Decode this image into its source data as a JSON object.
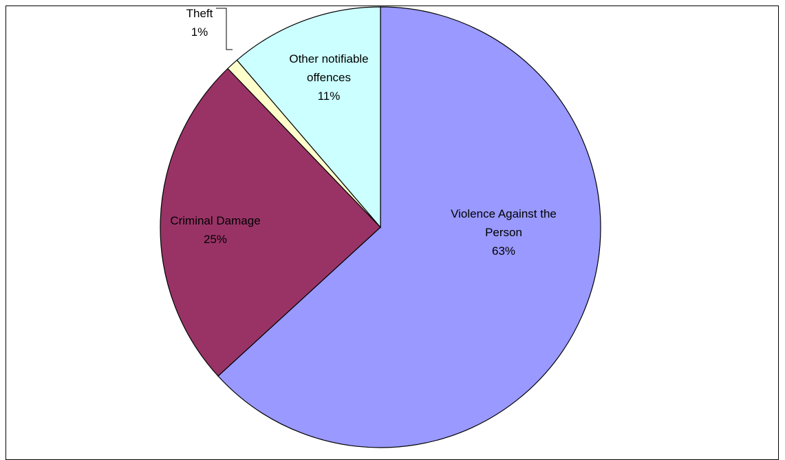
{
  "chart_data": {
    "type": "pie",
    "title": "",
    "start_angle_deg": 0,
    "direction": "clockwise",
    "slices": [
      {
        "name": "Violence Against the Person",
        "label_lines": [
          "Violence Against the",
          "Person"
        ],
        "pct_label": "63%",
        "value": 63.2,
        "color": "#9999ff"
      },
      {
        "name": "Criminal Damage",
        "label_lines": [
          "Criminal Damage"
        ],
        "pct_label": "25%",
        "value": 24.6,
        "color": "#993366"
      },
      {
        "name": "Theft",
        "label_lines": [
          "Theft"
        ],
        "pct_label": "1%",
        "value": 0.9,
        "color": "#ffffcc"
      },
      {
        "name": "Other notifiable offences",
        "label_lines": [
          "Other notifiable",
          "offences"
        ],
        "pct_label": "11%",
        "value": 11.3,
        "color": "#ccffff"
      }
    ],
    "legend": "none",
    "slice_outline_color": "#000000"
  }
}
